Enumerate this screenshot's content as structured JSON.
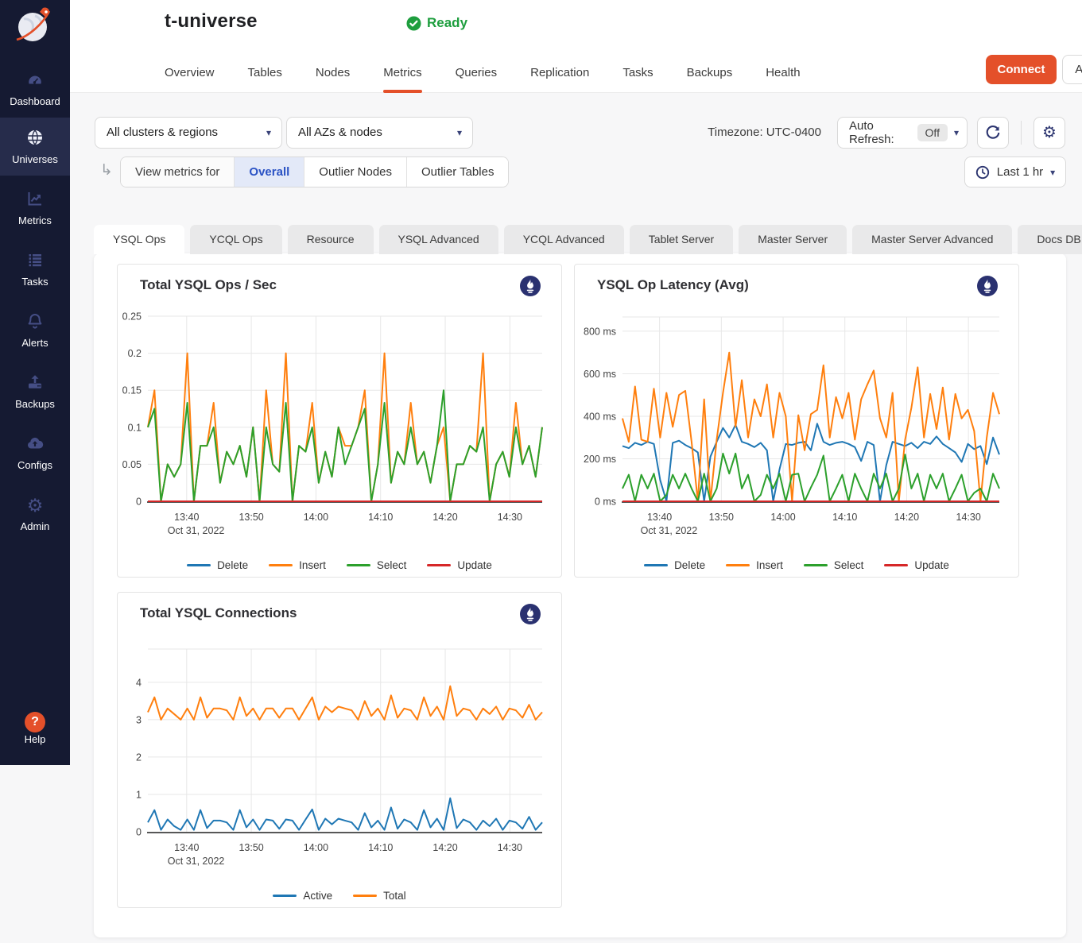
{
  "colors": {
    "accent_orange": "#e4502a",
    "status_green": "#1e9e3e",
    "sidebar_bg": "#151a32",
    "sidebar_active_bg": "#262c4b",
    "selected_blue_bg": "#e3e9f8",
    "selected_blue_text": "#2a52c4",
    "icon_navy": "#2c3570"
  },
  "sidebar": {
    "items": [
      {
        "label": "Dashboard",
        "icon": "dashboard",
        "active": false
      },
      {
        "label": "Universes",
        "icon": "universes",
        "active": true
      },
      {
        "label": "Metrics",
        "icon": "metrics",
        "active": false
      },
      {
        "label": "Tasks",
        "icon": "tasks",
        "active": false
      },
      {
        "label": "Alerts",
        "icon": "alerts",
        "active": false
      },
      {
        "label": "Backups",
        "icon": "backups",
        "active": false
      },
      {
        "label": "Configs",
        "icon": "configs",
        "active": false
      },
      {
        "label": "Admin",
        "icon": "admin",
        "active": false
      }
    ],
    "help_label": "Help"
  },
  "header": {
    "title": "t-universe",
    "status": "Ready",
    "tabs": [
      {
        "label": "Overview",
        "active": false
      },
      {
        "label": "Tables",
        "active": false
      },
      {
        "label": "Nodes",
        "active": false
      },
      {
        "label": "Metrics",
        "active": true
      },
      {
        "label": "Queries",
        "active": false
      },
      {
        "label": "Replication",
        "active": false
      },
      {
        "label": "Tasks",
        "active": false
      },
      {
        "label": "Backups",
        "active": false
      },
      {
        "label": "Health",
        "active": false
      }
    ],
    "connect_label": "Connect",
    "actions_label": "Actions"
  },
  "filters": {
    "clusters": "All clusters & regions",
    "azs": "All AZs & nodes",
    "timezone": "Timezone: UTC-0400",
    "auto_refresh_label": "Auto Refresh:",
    "auto_refresh_value": "Off",
    "view_metrics_label": "View metrics for",
    "view_options": [
      {
        "label": "Overall",
        "selected": true
      },
      {
        "label": "Outlier Nodes",
        "selected": false
      },
      {
        "label": "Outlier Tables",
        "selected": false
      }
    ],
    "time_range": "Last 1 hr"
  },
  "metric_tabs": [
    {
      "label": "YSQL Ops",
      "active": true
    },
    {
      "label": "YCQL Ops",
      "active": false
    },
    {
      "label": "Resource",
      "active": false
    },
    {
      "label": "YSQL Advanced",
      "active": false
    },
    {
      "label": "YCQL Advanced",
      "active": false
    },
    {
      "label": "Tablet Server",
      "active": false
    },
    {
      "label": "Master Server",
      "active": false
    },
    {
      "label": "Master Server Advanced",
      "active": false
    },
    {
      "label": "Docs DB",
      "active": false
    }
  ],
  "chart_data": [
    {
      "type": "line",
      "title": "Total YSQL Ops / Sec",
      "x_start_time": "13:34",
      "x_range_minutes": [
        0,
        61
      ],
      "x_tick_minutes": [
        6,
        16,
        26,
        36,
        46,
        56
      ],
      "x_tick_labels": [
        "13:40",
        "13:50",
        "14:00",
        "14:10",
        "14:20",
        "14:30"
      ],
      "date_label": "Oct 31, 2022",
      "y_ticks": [
        0,
        0.05,
        0.1,
        0.15,
        0.2,
        0.25
      ],
      "y_tick_labels": [
        "0",
        "0.05",
        "0.1",
        "0.15",
        "0.2",
        "0.25"
      ],
      "y_max": 0.25,
      "grid": true,
      "legend_position": "bottom",
      "series": [
        {
          "name": "Delete",
          "color": "#1f77b4",
          "values": [
            0,
            0,
            0,
            0,
            0,
            0,
            0,
            0,
            0,
            0,
            0,
            0,
            0,
            0,
            0,
            0,
            0,
            0,
            0,
            0,
            0,
            0,
            0,
            0,
            0,
            0,
            0,
            0,
            0,
            0,
            0,
            0,
            0,
            0,
            0,
            0,
            0,
            0,
            0,
            0,
            0,
            0,
            0,
            0,
            0,
            0,
            0,
            0,
            0,
            0,
            0,
            0,
            0,
            0,
            0,
            0,
            0,
            0,
            0,
            0,
            0
          ]
        },
        {
          "name": "Insert",
          "color": "#ff7f0e",
          "values": [
            0.1,
            0.15,
            0,
            0.05,
            0.033,
            0.05,
            0.2,
            0,
            0.075,
            0.075,
            0.133,
            0.025,
            0.067,
            0.05,
            0.075,
            0.033,
            0.1,
            0,
            0.15,
            0.05,
            0.04,
            0.2,
            0,
            0.075,
            0.067,
            0.133,
            0.025,
            0.067,
            0.033,
            0.1,
            0.075,
            0.075,
            0.1,
            0.15,
            0,
            0.05,
            0.2,
            0.025,
            0.067,
            0.05,
            0.133,
            0.05,
            0.067,
            0.025,
            0.075,
            0.1,
            0,
            0.05,
            0.05,
            0.075,
            0.067,
            0.2,
            0,
            0.05,
            0.067,
            0.033,
            0.133,
            0.05,
            0.075,
            0.033,
            0.1
          ]
        },
        {
          "name": "Select",
          "color": "#2ca02c",
          "values": [
            0.1,
            0.125,
            0,
            0.05,
            0.033,
            0.05,
            0.133,
            0,
            0.075,
            0.075,
            0.1,
            0.025,
            0.067,
            0.05,
            0.075,
            0.033,
            0.1,
            0,
            0.1,
            0.05,
            0.04,
            0.133,
            0,
            0.075,
            0.067,
            0.1,
            0.025,
            0.067,
            0.033,
            0.1,
            0.05,
            0.075,
            0.1,
            0.125,
            0,
            0.05,
            0.133,
            0.025,
            0.067,
            0.05,
            0.1,
            0.05,
            0.067,
            0.025,
            0.075,
            0.15,
            0,
            0.05,
            0.05,
            0.075,
            0.067,
            0.1,
            0,
            0.05,
            0.067,
            0.033,
            0.1,
            0.05,
            0.075,
            0.033,
            0.1
          ]
        },
        {
          "name": "Update",
          "color": "#d62728",
          "values": [
            0,
            0,
            0,
            0,
            0,
            0,
            0,
            0,
            0,
            0,
            0,
            0,
            0,
            0,
            0,
            0,
            0,
            0,
            0,
            0,
            0,
            0,
            0,
            0,
            0,
            0,
            0,
            0,
            0,
            0,
            0,
            0,
            0,
            0,
            0,
            0,
            0,
            0,
            0,
            0,
            0,
            0,
            0,
            0,
            0,
            0,
            0,
            0,
            0,
            0,
            0,
            0,
            0,
            0,
            0,
            0,
            0,
            0,
            0,
            0,
            0
          ]
        }
      ]
    },
    {
      "type": "line",
      "title": "YSQL Op Latency (Avg)",
      "x_start_time": "13:34",
      "x_range_minutes": [
        0,
        61
      ],
      "x_tick_minutes": [
        6,
        16,
        26,
        36,
        46,
        56
      ],
      "x_tick_labels": [
        "13:40",
        "13:50",
        "14:00",
        "14:10",
        "14:20",
        "14:30"
      ],
      "date_label": "Oct 31, 2022",
      "y_ticks": [
        0,
        200,
        400,
        600,
        800
      ],
      "y_tick_labels": [
        "0 ms",
        "200 ms",
        "400 ms",
        "600 ms",
        "800 ms"
      ],
      "y_max": 867,
      "grid": true,
      "legend_position": "bottom",
      "series": [
        {
          "name": "Delete",
          "color": "#1f77b4",
          "values": [
            260,
            250,
            275,
            265,
            280,
            270,
            100,
            0,
            275,
            285,
            265,
            250,
            230,
            0,
            210,
            280,
            345,
            300,
            360,
            280,
            270,
            255,
            275,
            240,
            0,
            150,
            270,
            265,
            275,
            280,
            240,
            365,
            280,
            265,
            275,
            280,
            270,
            255,
            190,
            280,
            265,
            0,
            170,
            280,
            270,
            260,
            275,
            250,
            280,
            270,
            305,
            270,
            250,
            230,
            185,
            270,
            245,
            260,
            175,
            300,
            220
          ]
        },
        {
          "name": "Insert",
          "color": "#ff7f0e",
          "values": [
            390,
            280,
            540,
            290,
            280,
            530,
            300,
            510,
            350,
            500,
            520,
            280,
            0,
            480,
            0,
            290,
            510,
            700,
            350,
            570,
            300,
            480,
            400,
            550,
            300,
            510,
            400,
            0,
            405,
            240,
            410,
            430,
            640,
            300,
            490,
            390,
            510,
            290,
            480,
            550,
            615,
            390,
            300,
            510,
            0,
            290,
            440,
            630,
            300,
            505,
            340,
            535,
            290,
            505,
            390,
            430,
            330,
            0,
            300,
            510,
            410
          ]
        },
        {
          "name": "Select",
          "color": "#2ca02c",
          "values": [
            60,
            125,
            0,
            125,
            60,
            130,
            0,
            30,
            125,
            60,
            130,
            60,
            0,
            130,
            0,
            60,
            225,
            130,
            225,
            60,
            125,
            0,
            30,
            125,
            60,
            130,
            0,
            125,
            130,
            0,
            65,
            125,
            215,
            0,
            60,
            125,
            0,
            130,
            60,
            0,
            130,
            60,
            130,
            0,
            60,
            220,
            60,
            130,
            0,
            125,
            60,
            130,
            0,
            60,
            125,
            0,
            40,
            60,
            0,
            130,
            60
          ]
        },
        {
          "name": "Update",
          "color": "#d62728",
          "values": [
            0,
            0,
            0,
            0,
            0,
            0,
            0,
            0,
            0,
            0,
            0,
            0,
            0,
            0,
            0,
            0,
            0,
            0,
            0,
            0,
            0,
            0,
            0,
            0,
            0,
            0,
            0,
            0,
            0,
            0,
            0,
            0,
            0,
            0,
            0,
            0,
            0,
            0,
            0,
            0,
            0,
            0,
            0,
            0,
            0,
            0,
            0,
            0,
            0,
            0,
            0,
            0,
            0,
            0,
            0,
            0,
            0,
            0,
            0,
            0,
            0
          ]
        }
      ]
    },
    {
      "type": "line",
      "title": "Total YSQL Connections",
      "x_start_time": "13:34",
      "x_range_minutes": [
        0,
        61
      ],
      "x_tick_minutes": [
        6,
        16,
        26,
        36,
        46,
        56
      ],
      "x_tick_labels": [
        "13:40",
        "13:50",
        "14:00",
        "14:10",
        "14:20",
        "14:30"
      ],
      "date_label": "Oct 31, 2022",
      "y_ticks": [
        0,
        1,
        2,
        3,
        4
      ],
      "y_tick_labels": [
        "0",
        "1",
        "2",
        "3",
        "4"
      ],
      "y_max": 4.89,
      "grid": true,
      "legend_position": "bottom",
      "series": [
        {
          "name": "Active",
          "color": "#1f77b4",
          "values": [
            0.25,
            0.58,
            0.05,
            0.33,
            0.15,
            0.05,
            0.33,
            0.05,
            0.58,
            0.1,
            0.3,
            0.3,
            0.25,
            0.05,
            0.58,
            0.12,
            0.33,
            0.05,
            0.33,
            0.3,
            0.08,
            0.33,
            0.3,
            0.05,
            0.33,
            0.6,
            0.05,
            0.35,
            0.2,
            0.35,
            0.3,
            0.25,
            0.05,
            0.5,
            0.12,
            0.3,
            0.05,
            0.65,
            0.08,
            0.33,
            0.25,
            0.05,
            0.58,
            0.12,
            0.35,
            0.05,
            0.9,
            0.1,
            0.33,
            0.25,
            0.05,
            0.3,
            0.15,
            0.35,
            0.05,
            0.3,
            0.25,
            0.08,
            0.4,
            0.05,
            0.25
          ]
        },
        {
          "name": "Total",
          "color": "#ff7f0e",
          "values": [
            3.2,
            3.6,
            3.0,
            3.3,
            3.15,
            3.0,
            3.3,
            3.0,
            3.6,
            3.05,
            3.3,
            3.3,
            3.25,
            3.0,
            3.6,
            3.1,
            3.3,
            3.0,
            3.3,
            3.3,
            3.05,
            3.3,
            3.3,
            3.0,
            3.3,
            3.6,
            3.0,
            3.35,
            3.2,
            3.35,
            3.3,
            3.25,
            3.0,
            3.5,
            3.1,
            3.3,
            3.0,
            3.65,
            3.05,
            3.3,
            3.25,
            3.0,
            3.6,
            3.1,
            3.35,
            3.0,
            3.9,
            3.1,
            3.3,
            3.25,
            3.0,
            3.3,
            3.15,
            3.35,
            3.0,
            3.3,
            3.25,
            3.05,
            3.4,
            3.0,
            3.2
          ]
        }
      ]
    }
  ]
}
